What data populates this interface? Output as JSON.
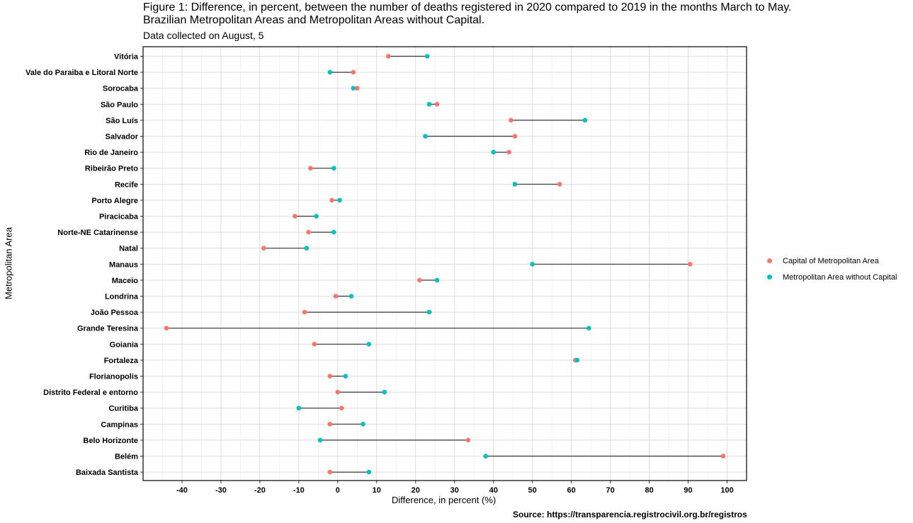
{
  "chart_data": {
    "type": "dumbbell",
    "title_line1": "Figure 1: Difference, in percent, between the number of deaths registered in 2020 compared to 2019 in the months March to May.",
    "title_line2": "Brazilian Metropolitan Areas and Metropolitan Areas without Capital.",
    "subtitle": "Data collected on August, 5",
    "caption": "Source: https://transparencia.registrocivil.org.br/registros",
    "xlabel": "Difference, in percent (%)",
    "ylabel": "Metropolitan Area",
    "xlim": [
      -50,
      105
    ],
    "xticks": [
      -40,
      -30,
      -20,
      -10,
      0,
      10,
      20,
      30,
      40,
      50,
      60,
      70,
      80,
      90,
      100
    ],
    "grid": true,
    "legend_position": "right",
    "series": [
      {
        "name": "Capital of Metropolitan Area",
        "color": "#F8766D"
      },
      {
        "name": "Metropolitan Area without Capital",
        "color": "#00BFC4"
      }
    ],
    "categories": [
      "Vitória",
      "Vale do Paraiba e Litoral Norte",
      "Sorocaba",
      "São Paulo",
      "São Luís",
      "Salvador",
      "Rio de Janeiro",
      "Ribeirão Preto",
      "Recife",
      "Porto Alegre",
      "Piracicaba",
      "Norte-NE Catarinense",
      "Natal",
      "Manaus",
      "Maceio",
      "Londrina",
      "João Pessoa",
      "Grande Teresina",
      "Goiania",
      "Fortaleza",
      "Florianopolis",
      "Distrito Federal e entorno",
      "Curitiba",
      "Campinas",
      "Belo Horizonte",
      "Belém",
      "Baixada Santista"
    ],
    "capital": [
      13,
      4,
      5,
      25.5,
      44.5,
      45.5,
      44,
      -7,
      57,
      -1.5,
      -11,
      -7.5,
      -19,
      90.5,
      21,
      -0.5,
      -8.5,
      -44,
      -6,
      61,
      -2,
      0,
      1,
      -2,
      33.5,
      99,
      -2
    ],
    "without_capital": [
      23,
      -2,
      4,
      23.5,
      63.5,
      22.5,
      40,
      -1,
      45.5,
      0.5,
      -5.5,
      -1,
      -8,
      50,
      25.5,
      3.5,
      23.5,
      64.5,
      8,
      61.5,
      2,
      12,
      -10,
      6.5,
      -4.5,
      38,
      8
    ]
  }
}
